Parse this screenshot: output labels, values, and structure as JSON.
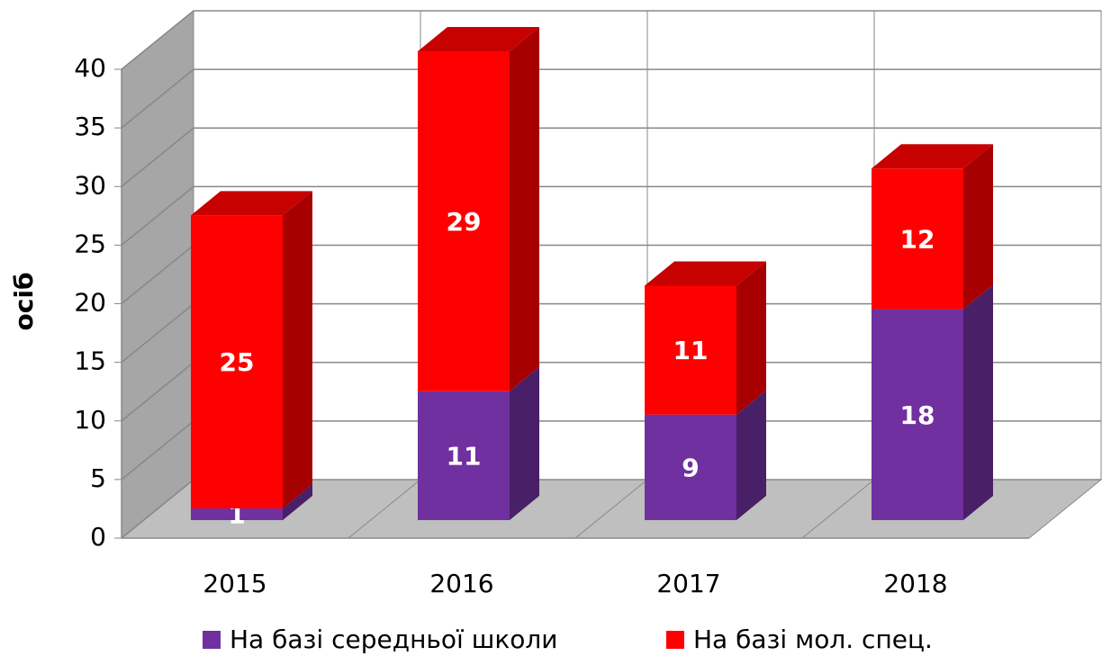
{
  "chart_data": {
    "type": "bar3d_stacked",
    "ylabel": "осіб",
    "categories": [
      "2015",
      "2016",
      "2017",
      "2018"
    ],
    "series": [
      {
        "name": "На базі середньої школи",
        "color": "#7030a0",
        "values": [
          1,
          11,
          9,
          18
        ]
      },
      {
        "name": "На базі мол. спец.",
        "color": "#ff0000",
        "values": [
          25,
          29,
          11,
          12
        ]
      }
    ],
    "ylim": [
      0,
      40
    ],
    "yticks": [
      0,
      5,
      10,
      15,
      20,
      25,
      30,
      35,
      40
    ],
    "grid": true,
    "legend": "bottom"
  }
}
